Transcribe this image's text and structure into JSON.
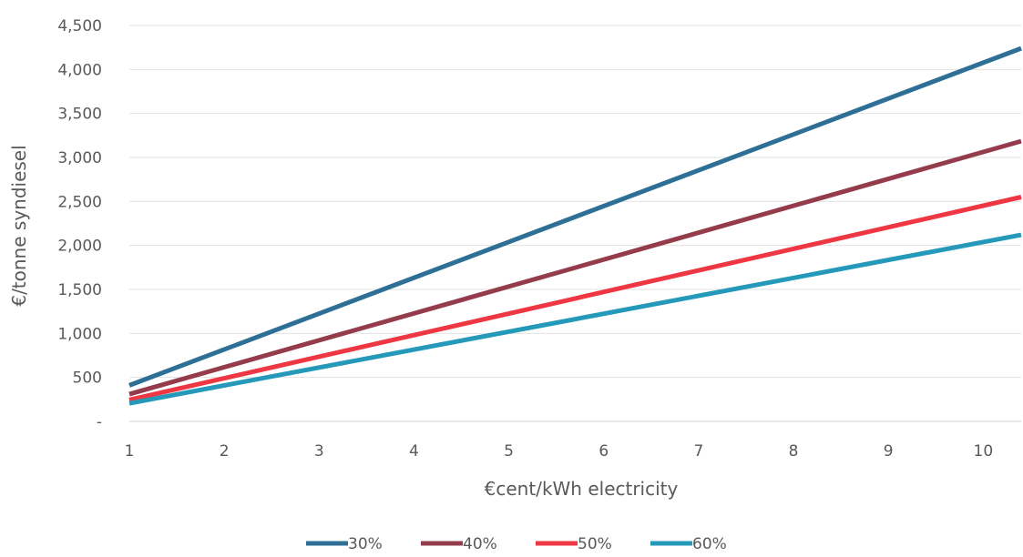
{
  "chart_data": {
    "type": "line",
    "x": [
      1,
      10.4
    ],
    "series": [
      {
        "name": "30%",
        "values": [
          410,
          4240
        ],
        "color": "#2e6f96"
      },
      {
        "name": "40%",
        "values": [
          310,
          3185
        ],
        "color": "#943c4c"
      },
      {
        "name": "50%",
        "values": [
          245,
          2550
        ],
        "color": "#ef3743"
      },
      {
        "name": "60%",
        "values": [
          205,
          2120
        ],
        "color": "#2599ba"
      }
    ],
    "xlabel": "€cent/kWh electricity",
    "ylabel": "€/tonne syndiesel",
    "xlim": [
      1,
      10.4
    ],
    "ylim": [
      0,
      4500
    ],
    "x_ticks": [
      "1",
      "2",
      "3",
      "4",
      "5",
      "6",
      "7",
      "8",
      "9",
      "10"
    ],
    "y_ticks": [
      "-",
      "500",
      "1,000",
      "1,500",
      "2,000",
      "2,500",
      "3,000",
      "3,500",
      "4,000",
      "4,500"
    ],
    "grid": "horizontal",
    "legend": "bottom"
  }
}
